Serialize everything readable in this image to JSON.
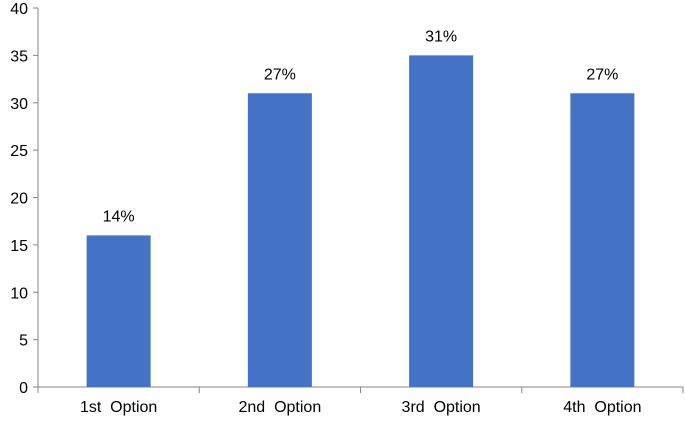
{
  "chart_data": {
    "type": "bar",
    "categories": [
      "1st  Option",
      "2nd  Option",
      "3rd  Option",
      "4th  Option"
    ],
    "values": [
      16,
      31,
      35,
      31
    ],
    "data_labels": [
      "14%",
      "27%",
      "31%",
      "27%"
    ],
    "title": "",
    "xlabel": "",
    "ylabel": "",
    "ylim": [
      0,
      40
    ],
    "yticks": [
      0,
      5,
      10,
      15,
      20,
      25,
      30,
      35,
      40
    ],
    "grid": false,
    "legend": "none",
    "bar_color": "#4472C4"
  }
}
